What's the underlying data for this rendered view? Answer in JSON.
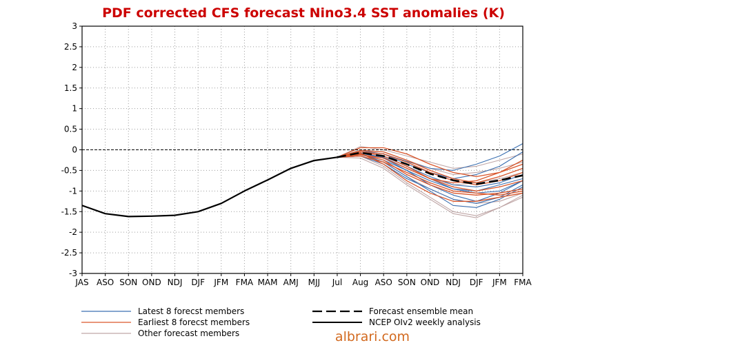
{
  "chart_data": {
    "type": "line",
    "title": "PDF corrected CFS forecast Nino3.4 SST anomalies (K)",
    "xlabel": "",
    "ylabel": "",
    "categories": [
      "JAS",
      "ASO",
      "SON",
      "OND",
      "NDJ",
      "DJF",
      "JFM",
      "FMA",
      "MAM",
      "AMJ",
      "MJJ",
      "Jul",
      "Aug",
      "ASO",
      "SON",
      "OND",
      "NDJ",
      "DJF",
      "JFM",
      "FMA"
    ],
    "ylim": [
      -3,
      3
    ],
    "yticks": [
      "3",
      "2.5",
      "2",
      "1.5",
      "1",
      "0.5",
      "0",
      "-0.5",
      "-1",
      "-1.5",
      "-2",
      "-2.5",
      "-3"
    ],
    "grid": true,
    "legend_position": "bottom",
    "colors": {
      "latest": "#3a6fb0",
      "earliest": "#d9562b",
      "other": "#bfa6a6",
      "mean": "#000000",
      "analysis": "#000000",
      "title": "#cc0000"
    },
    "legend": {
      "latest": "Latest 8 forecst members",
      "earliest": "Earliest 8 forecst members",
      "other": "Other forecast members",
      "mean": "Forecast ensemble mean",
      "analysis": "NCEP OIv2 weekly analysis"
    },
    "series": [
      {
        "name": "NCEP OIv2 weekly analysis",
        "style": "analysis",
        "x": [
          0,
          1,
          2,
          3,
          4,
          5,
          6,
          7,
          8,
          9,
          10,
          11
        ],
        "values": [
          -1.35,
          -1.55,
          -1.62,
          -1.61,
          -1.59,
          -1.5,
          -1.3,
          -1.0,
          -0.73,
          -0.45,
          -0.26,
          -0.18
        ]
      },
      {
        "name": "Forecast ensemble mean",
        "style": "mean",
        "x": [
          11,
          12,
          13,
          14,
          15,
          16,
          17,
          18,
          19
        ],
        "values": [
          -0.18,
          -0.07,
          -0.15,
          -0.35,
          -0.58,
          -0.74,
          -0.83,
          -0.74,
          -0.62
        ]
      },
      {
        "style": "latest",
        "x": [
          11,
          12,
          13,
          14,
          15,
          16,
          17,
          18,
          19
        ],
        "values": [
          -0.18,
          -0.08,
          -0.2,
          -0.5,
          -0.85,
          -1.1,
          -1.25,
          -1.05,
          -0.75
        ]
      },
      {
        "style": "latest",
        "x": [
          11,
          12,
          13,
          14,
          15,
          16,
          17,
          18,
          19
        ],
        "values": [
          -0.18,
          -0.02,
          -0.1,
          -0.28,
          -0.45,
          -0.5,
          -0.35,
          -0.15,
          0.15
        ]
      },
      {
        "style": "latest",
        "x": [
          11,
          12,
          13,
          14,
          15,
          16,
          17,
          18,
          19
        ],
        "values": [
          -0.18,
          -0.1,
          -0.3,
          -0.65,
          -1.0,
          -1.35,
          -1.4,
          -1.2,
          -0.9
        ]
      },
      {
        "style": "latest",
        "x": [
          11,
          12,
          13,
          14,
          15,
          16,
          17,
          18,
          19
        ],
        "values": [
          -0.18,
          -0.12,
          -0.25,
          -0.5,
          -0.75,
          -0.95,
          -1.0,
          -0.85,
          -0.7
        ]
      },
      {
        "style": "latest",
        "x": [
          11,
          12,
          13,
          14,
          15,
          16,
          17,
          18,
          19
        ],
        "values": [
          -0.18,
          -0.05,
          -0.15,
          -0.4,
          -0.65,
          -0.85,
          -0.9,
          -0.8,
          -0.6
        ]
      },
      {
        "style": "latest",
        "x": [
          11,
          12,
          13,
          14,
          15,
          16,
          17,
          18,
          19
        ],
        "values": [
          -0.18,
          -0.15,
          -0.35,
          -0.7,
          -0.95,
          -1.2,
          -1.3,
          -1.15,
          -0.85
        ]
      },
      {
        "style": "latest",
        "x": [
          11,
          12,
          13,
          14,
          15,
          16,
          17,
          18,
          19
        ],
        "values": [
          -0.18,
          -0.05,
          -0.1,
          -0.35,
          -0.55,
          -0.7,
          -0.6,
          -0.4,
          -0.05
        ]
      },
      {
        "style": "latest",
        "x": [
          11,
          12,
          13,
          14,
          15,
          16,
          17,
          18,
          19
        ],
        "values": [
          -0.18,
          -0.08,
          -0.18,
          -0.45,
          -0.7,
          -0.95,
          -1.05,
          -1.0,
          -0.75
        ]
      },
      {
        "style": "earliest",
        "x": [
          11,
          12,
          13,
          14,
          15,
          16,
          17,
          18,
          19
        ],
        "values": [
          -0.18,
          0.05,
          0.05,
          -0.1,
          -0.35,
          -0.55,
          -0.65,
          -0.55,
          -0.35
        ]
      },
      {
        "style": "earliest",
        "x": [
          11,
          12,
          13,
          14,
          15,
          16,
          17,
          18,
          19
        ],
        "values": [
          -0.18,
          -0.1,
          -0.25,
          -0.6,
          -0.85,
          -1.05,
          -1.1,
          -1.05,
          -0.95
        ]
      },
      {
        "style": "earliest",
        "x": [
          11,
          12,
          13,
          14,
          15,
          16,
          17,
          18,
          19
        ],
        "values": [
          -0.18,
          -0.05,
          -0.15,
          -0.4,
          -0.7,
          -0.9,
          -1.0,
          -0.9,
          -0.75
        ]
      },
      {
        "style": "earliest",
        "x": [
          11,
          12,
          13,
          14,
          15,
          16,
          17,
          18,
          19
        ],
        "values": [
          -0.18,
          -0.15,
          -0.3,
          -0.55,
          -0.8,
          -1.0,
          -1.05,
          -1.1,
          -1.0
        ]
      },
      {
        "style": "earliest",
        "x": [
          11,
          12,
          13,
          14,
          15,
          16,
          17,
          18,
          19
        ],
        "values": [
          -0.18,
          -0.02,
          -0.05,
          -0.25,
          -0.5,
          -0.7,
          -0.8,
          -0.65,
          -0.45
        ]
      },
      {
        "style": "earliest",
        "x": [
          11,
          12,
          13,
          14,
          15,
          16,
          17,
          18,
          19
        ],
        "values": [
          -0.18,
          -0.12,
          -0.2,
          -0.45,
          -0.7,
          -0.8,
          -0.75,
          -0.55,
          -0.25
        ]
      },
      {
        "style": "earliest",
        "x": [
          11,
          12,
          13,
          14,
          15,
          16,
          17,
          18,
          19
        ],
        "values": [
          -0.18,
          -0.08,
          -0.35,
          -0.75,
          -1.05,
          -1.25,
          -1.25,
          -1.15,
          -1.05
        ]
      },
      {
        "style": "earliest",
        "x": [
          11,
          12,
          13,
          14,
          15,
          16,
          17,
          18,
          19
        ],
        "values": [
          -0.18,
          -0.05,
          -0.1,
          -0.3,
          -0.55,
          -0.75,
          -0.85,
          -0.75,
          -0.55
        ]
      },
      {
        "style": "other",
        "x": [
          11,
          12,
          13,
          14,
          15,
          16,
          17,
          18,
          19
        ],
        "values": [
          -0.18,
          -0.15,
          -0.4,
          -0.8,
          -1.15,
          -1.5,
          -1.6,
          -1.4,
          -1.1
        ]
      },
      {
        "style": "other",
        "x": [
          11,
          12,
          13,
          14,
          15,
          16,
          17,
          18,
          19
        ],
        "values": [
          -0.18,
          0.08,
          0.0,
          -0.15,
          -0.3,
          -0.45,
          -0.4,
          -0.25,
          -0.1
        ]
      },
      {
        "style": "other",
        "x": [
          11,
          12,
          13,
          14,
          15,
          16,
          17,
          18,
          19
        ],
        "values": [
          -0.18,
          -0.1,
          -0.3,
          -0.65,
          -0.95,
          -1.2,
          -1.3,
          -1.25,
          -1.05
        ]
      },
      {
        "style": "other",
        "x": [
          11,
          12,
          13,
          14,
          15,
          16,
          17,
          18,
          19
        ],
        "values": [
          -0.18,
          -0.05,
          -0.15,
          -0.4,
          -0.7,
          -0.85,
          -0.8,
          -0.7,
          -0.55
        ]
      },
      {
        "style": "other",
        "x": [
          11,
          12,
          13,
          14,
          15,
          16,
          17,
          18,
          19
        ],
        "values": [
          -0.18,
          -0.2,
          -0.45,
          -0.85,
          -1.2,
          -1.55,
          -1.65,
          -1.4,
          -1.15
        ]
      },
      {
        "style": "other",
        "x": [
          11,
          12,
          13,
          14,
          15,
          16,
          17,
          18,
          19
        ],
        "values": [
          -0.18,
          0.0,
          -0.05,
          -0.25,
          -0.45,
          -0.6,
          -0.55,
          -0.45,
          -0.3
        ]
      }
    ]
  },
  "watermark": "albrari.com"
}
